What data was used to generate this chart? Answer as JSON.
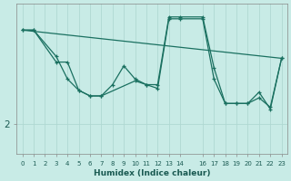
{
  "xlabel": "Humidex (Indice chaleur)",
  "bg_color": "#c8ebe6",
  "line_color": "#1a7060",
  "grid_color": "#b0d8d2",
  "xlim": [
    -0.5,
    23.5
  ],
  "ylim": [
    1.2,
    5.2
  ],
  "series1_x": [
    0,
    1,
    3,
    4,
    5,
    6,
    7,
    8,
    9,
    10,
    11,
    12,
    13,
    14,
    16,
    17,
    18,
    19,
    20,
    21,
    22,
    23
  ],
  "series1_y": [
    4.5,
    4.5,
    3.8,
    3.2,
    2.9,
    2.75,
    2.75,
    3.05,
    3.55,
    3.2,
    3.05,
    3.05,
    4.85,
    4.85,
    4.85,
    3.5,
    2.55,
    2.55,
    2.55,
    2.85,
    2.4,
    3.75
  ],
  "series2_x": [
    0,
    1,
    3,
    4,
    5,
    6,
    7,
    10,
    11,
    12,
    13,
    14,
    16,
    17,
    18,
    19,
    20,
    21,
    22,
    23
  ],
  "series2_y": [
    4.5,
    4.5,
    3.65,
    3.65,
    2.9,
    2.75,
    2.75,
    3.15,
    3.05,
    2.95,
    4.8,
    4.8,
    4.8,
    3.2,
    2.55,
    2.55,
    2.55,
    2.7,
    2.45,
    3.75
  ],
  "trend_x": [
    0,
    23
  ],
  "trend_y": [
    4.5,
    3.75
  ],
  "xticks": [
    0,
    1,
    2,
    3,
    4,
    5,
    6,
    7,
    8,
    9,
    10,
    11,
    12,
    13,
    14,
    16,
    17,
    18,
    19,
    20,
    21,
    22,
    23
  ],
  "ytick_positions": [
    2.0
  ],
  "ytick_labels": [
    "2"
  ]
}
